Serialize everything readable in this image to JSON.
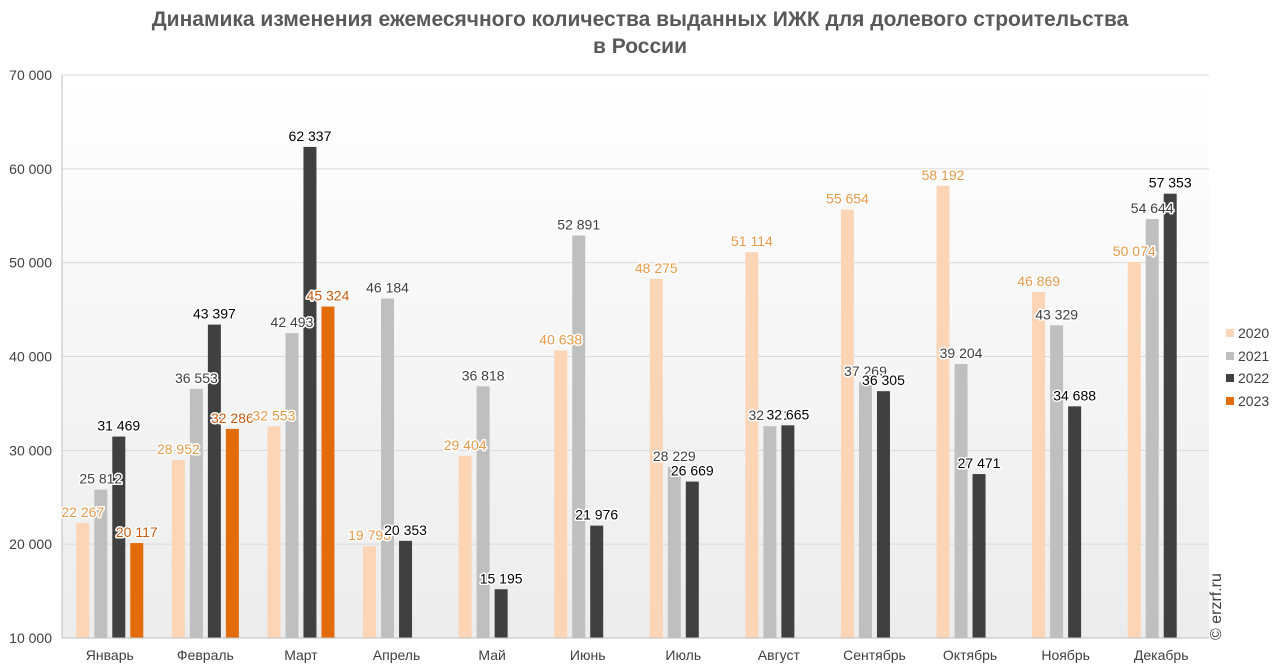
{
  "title_line1": "Динамика изменения ежемесячного количества выданных ИЖК для долевого строительства",
  "title_line2": "в России",
  "watermark": "© erzrf.ru",
  "chart_data": {
    "type": "bar",
    "title": "Динамика изменения ежемесячного количества выданных ИЖК для долевого строительства в России",
    "categories": [
      "Январь",
      "Февраль",
      "Март",
      "Апрель",
      "Май",
      "Июнь",
      "Июль",
      "Август",
      "Сентябрь",
      "Октябрь",
      "Ноябрь",
      "Декабрь"
    ],
    "ylim": [
      10000,
      70000
    ],
    "yticks": [
      10000,
      20000,
      30000,
      40000,
      50000,
      60000,
      70000
    ],
    "ytick_labels": [
      "10 000",
      "20 000",
      "30 000",
      "40 000",
      "50 000",
      "60 000",
      "70 000"
    ],
    "grid": true,
    "legend_position": "right",
    "series": [
      {
        "name": "2020",
        "color": "#FBD5B5",
        "label_color": "#E59A4B",
        "values": [
          22267,
          28952,
          32553,
          19793,
          29404,
          40638,
          48275,
          51114,
          55654,
          58192,
          46869,
          50074
        ],
        "labels": [
          "22 267",
          "28 952",
          "32 553",
          "19 793",
          "29 404",
          "40 638",
          "48 275",
          "51 114",
          "55 654",
          "58 192",
          "46 869",
          "50 074"
        ]
      },
      {
        "name": "2021",
        "color": "#BFBFBF",
        "label_color": "#404040",
        "values": [
          25812,
          36553,
          42493,
          46184,
          36818,
          52891,
          28229,
          32572,
          37269,
          39204,
          43329,
          54644
        ],
        "labels": [
          "25 812",
          "36 553",
          "42 493",
          "46 184",
          "36 818",
          "52 891",
          "28 229",
          "32 572",
          "37 269",
          "39 204",
          "43 329",
          "54 644"
        ]
      },
      {
        "name": "2022",
        "color": "#404040",
        "label_color": "#000000",
        "values": [
          31469,
          43397,
          62337,
          20353,
          15195,
          21976,
          26669,
          32665,
          36305,
          27471,
          34688,
          57353
        ],
        "labels": [
          "31 469",
          "43 397",
          "62 337",
          "20 353",
          "15 195",
          "21 976",
          "26 669",
          "32 665",
          "36 305",
          "27 471",
          "34 688",
          "57 353"
        ]
      },
      {
        "name": "2023",
        "color": "#E36C0A",
        "label_color": "#C55A11",
        "values": [
          20117,
          32286,
          45324,
          null,
          null,
          null,
          null,
          null,
          null,
          null,
          null,
          null
        ],
        "labels": [
          "20 117",
          "32 286",
          "45 324",
          "",
          "",
          "",
          "",
          "",
          "",
          "",
          "",
          ""
        ]
      }
    ]
  }
}
